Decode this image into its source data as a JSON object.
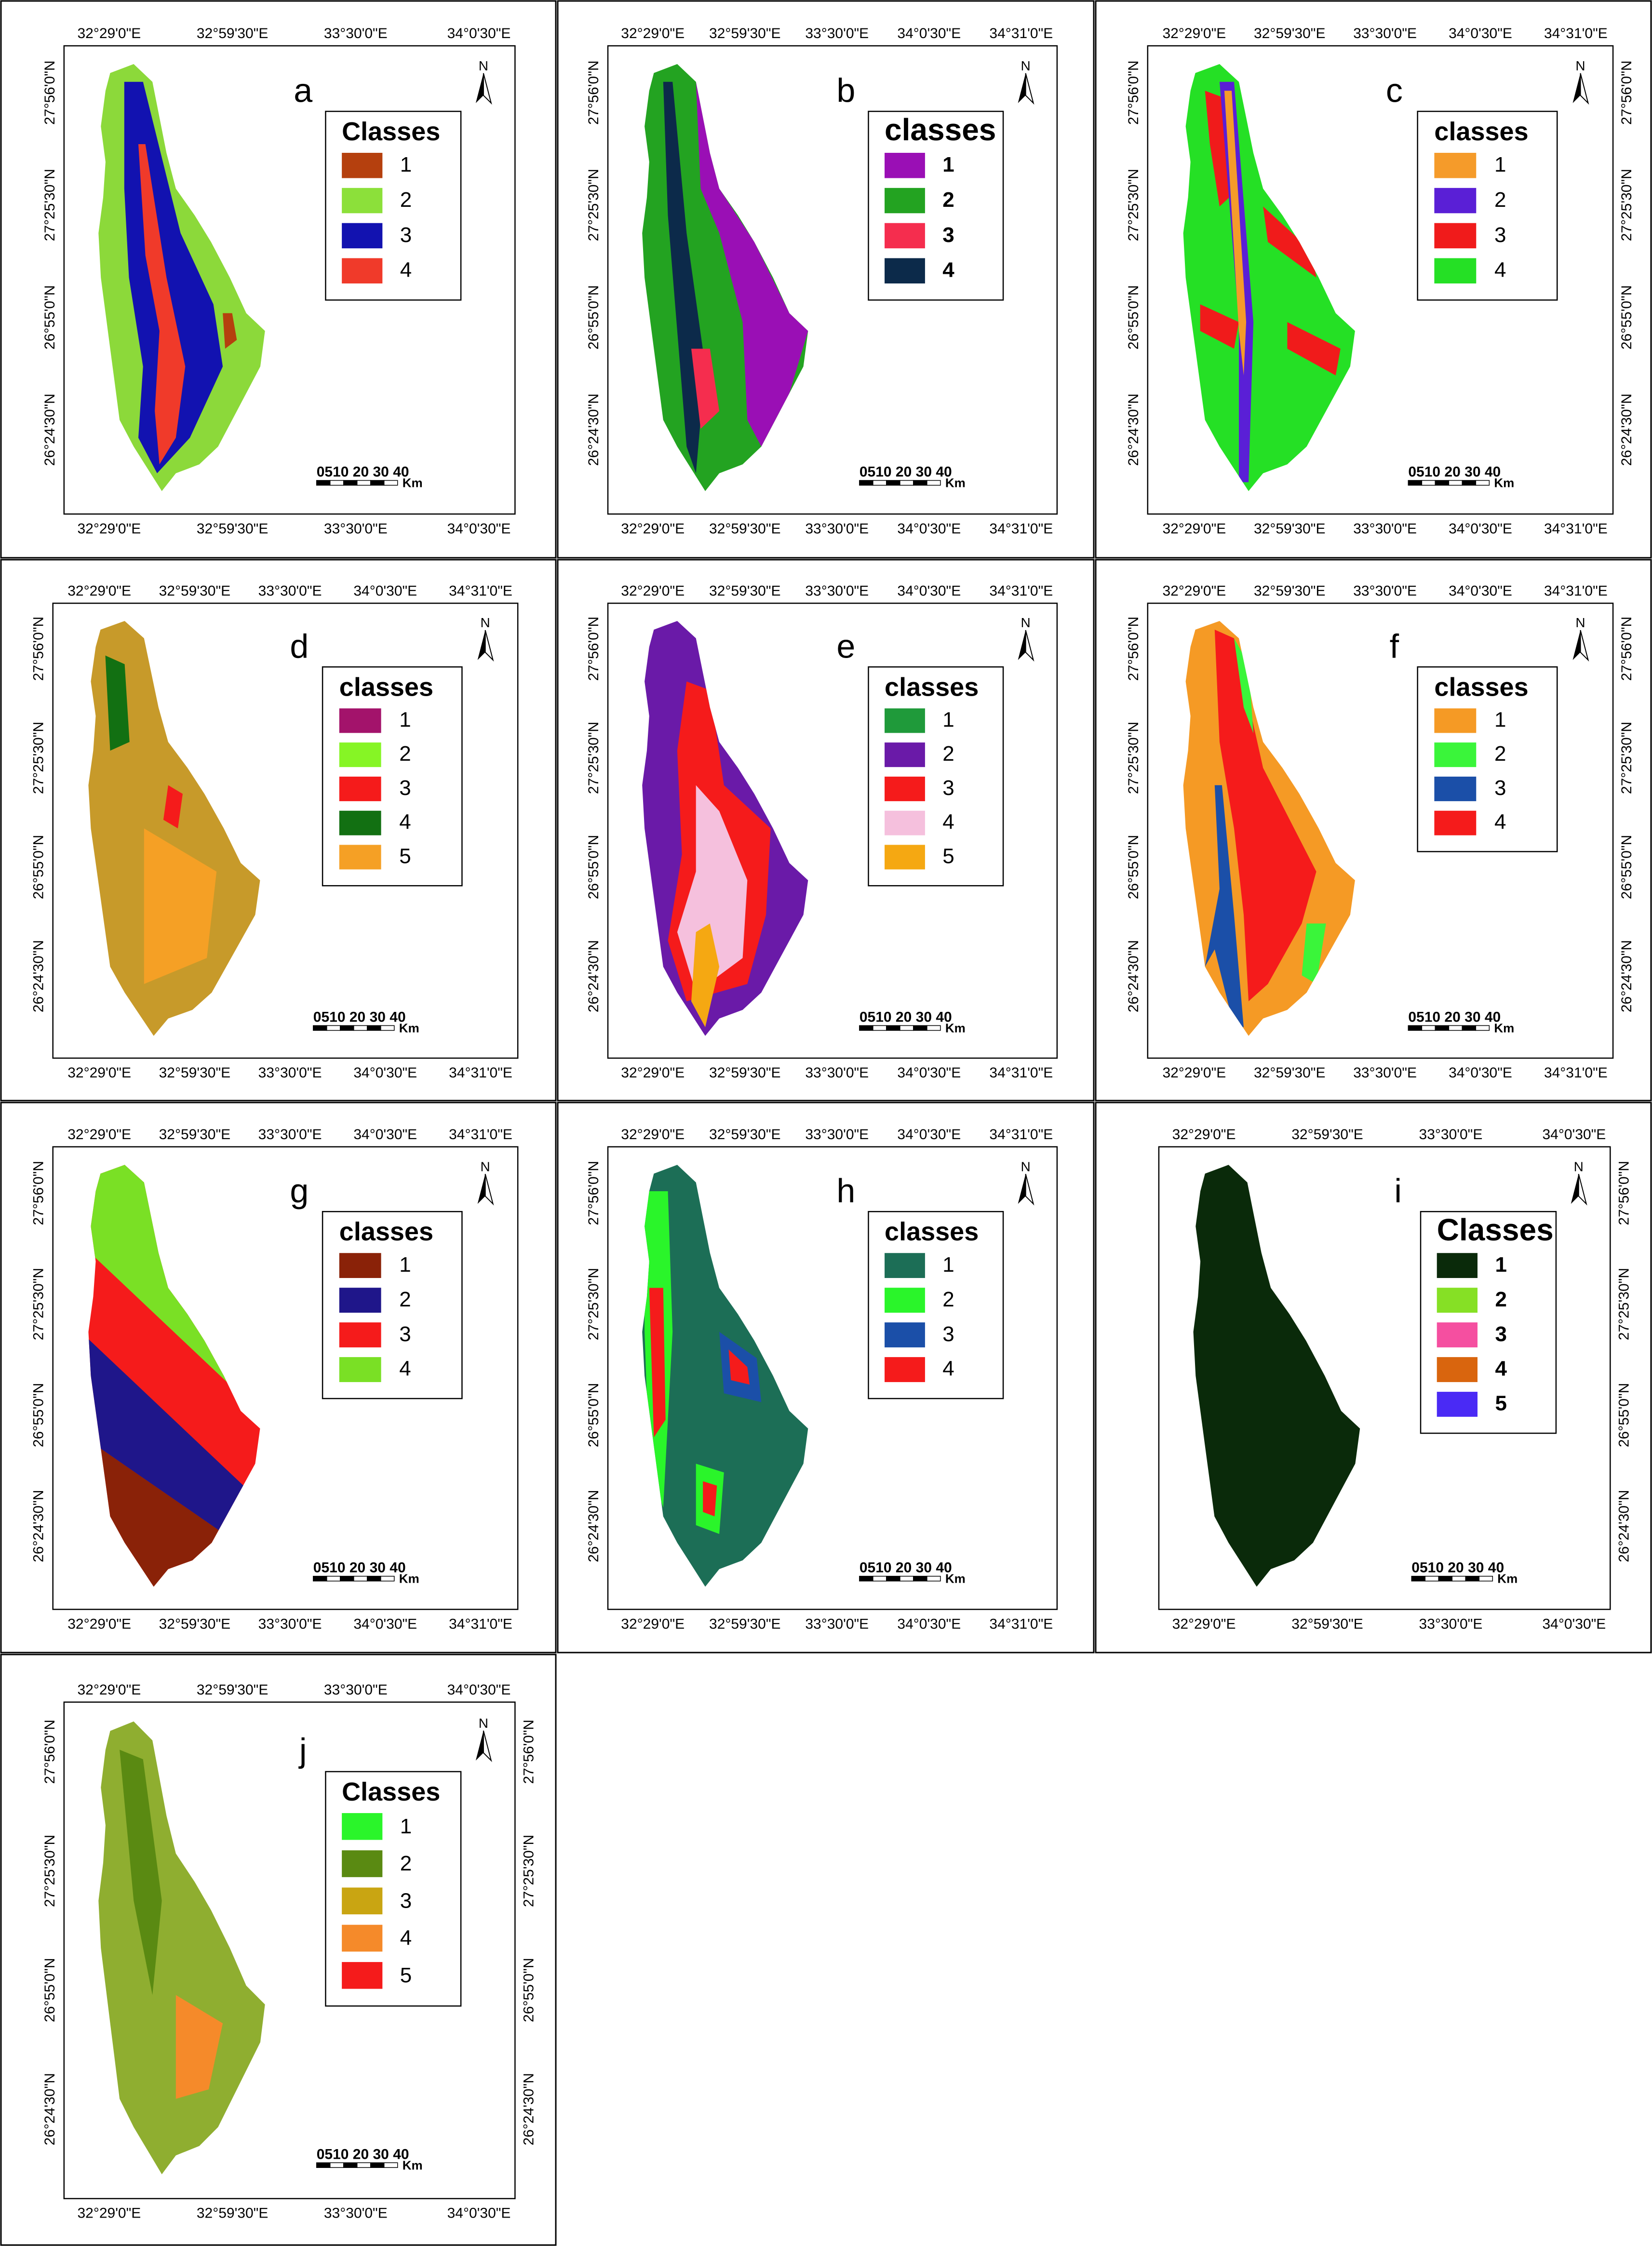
{
  "figure": {
    "scale_bar": {
      "ticks": "0510 20 30 40",
      "unit": "Km"
    },
    "north_label": "N",
    "panels": [
      {
        "id": "a",
        "title": "Classes",
        "legend_bold": false,
        "frame": "b",
        "fill": "#8cd93a",
        "top_coords": [
          "32°29'0\"E",
          "32°59'30\"E",
          "33°30'0\"E",
          "34°0'30\"E"
        ],
        "bottom_coords": [
          "32°29'0\"E",
          "32°59'30\"E",
          "33°30'0\"E",
          "34°0'30\"E"
        ],
        "left_coords": [
          "27°56'0\"N",
          "27°25'30\"N",
          "26°55'0\"N",
          "26°24'30\"N"
        ],
        "right_coords": [],
        "classes": [
          {
            "label": "1",
            "color": "#b5400e"
          },
          {
            "label": "2",
            "color": "#8ce03a"
          },
          {
            "label": "3",
            "color": "#1212b0"
          },
          {
            "label": "4",
            "color": "#f03a2a"
          }
        ]
      },
      {
        "id": "b",
        "title": "classes",
        "legend_bold": true,
        "frame": "a",
        "fill": "#23a321",
        "top_coords": [
          "32°29'0\"E",
          "32°59'30\"E",
          "33°30'0\"E",
          "34°0'30\"E",
          "34°31'0\"E"
        ],
        "bottom_coords": [
          "32°29'0\"E",
          "32°59'30\"E",
          "33°30'0\"E",
          "34°0'30\"E",
          "34°31'0\"E"
        ],
        "left_coords": [
          "27°56'0\"N",
          "27°25'30\"N",
          "26°55'0\"N",
          "26°24'30\"N"
        ],
        "right_coords": [],
        "classes": [
          {
            "label": "1",
            "color": "#9a0fb5"
          },
          {
            "label": "2",
            "color": "#23a321"
          },
          {
            "label": "3",
            "color": "#f52d4e"
          },
          {
            "label": "4",
            "color": "#0c2a4a"
          }
        ]
      },
      {
        "id": "c",
        "title": "classes",
        "legend_bold": false,
        "frame": "a",
        "fill": "#25e025",
        "top_coords": [
          "32°29'0\"E",
          "32°59'30\"E",
          "33°30'0\"E",
          "34°0'30\"E",
          "34°31'0\"E"
        ],
        "bottom_coords": [
          "32°29'0\"E",
          "32°59'30\"E",
          "33°30'0\"E",
          "34°0'30\"E",
          "34°31'0\"E"
        ],
        "left_coords": [
          "27°56'0\"N",
          "27°25'30\"N",
          "26°55'0\"N",
          "26°24'30\"N"
        ],
        "right_coords": [
          "27°56'0\"N",
          "27°25'30\"N",
          "26°55'0\"N",
          "26°24'30\"N"
        ],
        "classes": [
          {
            "label": "1",
            "color": "#f59b2a"
          },
          {
            "label": "2",
            "color": "#5a1fd6"
          },
          {
            "label": "3",
            "color": "#f01b1b"
          },
          {
            "label": "4",
            "color": "#25e025"
          }
        ]
      },
      {
        "id": "d",
        "title": "classes",
        "legend_bold": false,
        "frame": "a",
        "fill": "#c79a2a",
        "top_coords": [
          "32°29'0\"E",
          "32°59'30\"E",
          "33°30'0\"E",
          "34°0'30\"E",
          "34°31'0\"E"
        ],
        "bottom_coords": [
          "32°29'0\"E",
          "32°59'30\"E",
          "33°30'0\"E",
          "34°0'30\"E",
          "34°31'0\"E"
        ],
        "left_coords": [
          "27°56'0\"N",
          "27°25'30\"N",
          "26°55'0\"N",
          "26°24'30\"N"
        ],
        "right_coords": [],
        "classes": [
          {
            "label": "1",
            "color": "#a3136b"
          },
          {
            "label": "2",
            "color": "#86f525"
          },
          {
            "label": "3",
            "color": "#f51b1b"
          },
          {
            "label": "4",
            "color": "#127012"
          },
          {
            "label": "5",
            "color": "#f5a025"
          }
        ]
      },
      {
        "id": "e",
        "title": "classes",
        "legend_bold": false,
        "frame": "a",
        "fill": "#6a1aa8",
        "top_coords": [
          "32°29'0\"E",
          "32°59'30\"E",
          "33°30'0\"E",
          "34°0'30\"E",
          "34°31'0\"E"
        ],
        "bottom_coords": [
          "32°29'0\"E",
          "32°59'30\"E",
          "33°30'0\"E",
          "34°0'30\"E",
          "34°31'0\"E"
        ],
        "left_coords": [
          "27°56'0\"N",
          "27°25'30\"N",
          "26°55'0\"N",
          "26°24'30\"N"
        ],
        "right_coords": [],
        "classes": [
          {
            "label": "1",
            "color": "#1f9a3a"
          },
          {
            "label": "2",
            "color": "#6a1aa8"
          },
          {
            "label": "3",
            "color": "#f51b1b"
          },
          {
            "label": "4",
            "color": "#f5c0dd"
          },
          {
            "label": "5",
            "color": "#f5a812"
          }
        ]
      },
      {
        "id": "f",
        "title": "classes",
        "legend_bold": false,
        "frame": "a",
        "fill": "#f59a25",
        "top_coords": [
          "32°29'0\"E",
          "32°59'30\"E",
          "33°30'0\"E",
          "34°0'30\"E",
          "34°31'0\"E"
        ],
        "bottom_coords": [
          "32°29'0\"E",
          "32°59'30\"E",
          "33°30'0\"E",
          "34°0'30\"E",
          "34°31'0\"E"
        ],
        "left_coords": [
          "27°56'0\"N",
          "27°25'30\"N",
          "26°55'0\"N",
          "26°24'30\"N"
        ],
        "right_coords": [
          "27°56'0\"N",
          "27°25'30\"N",
          "26°55'0\"N",
          "26°24'30\"N"
        ],
        "classes": [
          {
            "label": "1",
            "color": "#f59a25"
          },
          {
            "label": "2",
            "color": "#3af53a"
          },
          {
            "label": "3",
            "color": "#1b4fa8"
          },
          {
            "label": "4",
            "color": "#f51b1b"
          }
        ]
      },
      {
        "id": "g",
        "title": "classes",
        "legend_bold": false,
        "frame": "a",
        "fill": "#f51b1b",
        "top_coords": [
          "32°29'0\"E",
          "32°59'30\"E",
          "33°30'0\"E",
          "34°0'30\"E",
          "34°31'0\"E"
        ],
        "bottom_coords": [
          "32°29'0\"E",
          "32°59'30\"E",
          "33°30'0\"E",
          "34°0'30\"E",
          "34°31'0\"E"
        ],
        "left_coords": [
          "27°56'0\"N",
          "27°25'30\"N",
          "26°55'0\"N",
          "26°24'30\"N"
        ],
        "right_coords": [],
        "classes": [
          {
            "label": "1",
            "color": "#8a2208"
          },
          {
            "label": "2",
            "color": "#1f168a"
          },
          {
            "label": "3",
            "color": "#f51b1b"
          },
          {
            "label": "4",
            "color": "#7ae025"
          }
        ]
      },
      {
        "id": "h",
        "title": "classes",
        "legend_bold": false,
        "frame": "a",
        "fill": "#1c6e56",
        "top_coords": [
          "32°29'0\"E",
          "32°59'30\"E",
          "33°30'0\"E",
          "34°0'30\"E",
          "34°31'0\"E"
        ],
        "bottom_coords": [
          "32°29'0\"E",
          "32°59'30\"E",
          "33°30'0\"E",
          "34°0'30\"E",
          "34°31'0\"E"
        ],
        "left_coords": [
          "27°56'0\"N",
          "27°25'30\"N",
          "26°55'0\"N",
          "26°24'30\"N"
        ],
        "right_coords": [],
        "classes": [
          {
            "label": "1",
            "color": "#1c6e56"
          },
          {
            "label": "2",
            "color": "#2af52a"
          },
          {
            "label": "3",
            "color": "#1b4fa8"
          },
          {
            "label": "4",
            "color": "#f51b1b"
          }
        ]
      },
      {
        "id": "i",
        "title": "Classes",
        "legend_bold": true,
        "frame": "b",
        "fill": "#0a2a0a",
        "top_coords": [
          "32°29'0\"E",
          "32°59'30\"E",
          "33°30'0\"E",
          "34°0'30\"E"
        ],
        "bottom_coords": [
          "32°29'0\"E",
          "32°59'30\"E",
          "33°30'0\"E",
          "34°0'30\"E"
        ],
        "left_coords": [],
        "right_coords": [
          "27°56'0\"N",
          "27°25'30\"N",
          "26°55'0\"N",
          "26°24'30\"N"
        ],
        "classes": [
          {
            "label": "1",
            "color": "#0a2a0a"
          },
          {
            "label": "2",
            "color": "#86e025"
          },
          {
            "label": "3",
            "color": "#f54fa0"
          },
          {
            "label": "4",
            "color": "#d9650e"
          },
          {
            "label": "5",
            "color": "#4a2af5"
          }
        ]
      },
      {
        "id": "j",
        "title": "Classes",
        "legend_bold": false,
        "frame": "b",
        "fill": "#8fae30",
        "top_coords": [
          "32°29'0\"E",
          "32°59'30\"E",
          "33°30'0\"E",
          "34°0'30\"E"
        ],
        "bottom_coords": [
          "32°29'0\"E",
          "32°59'30\"E",
          "33°30'0\"E",
          "34°0'30\"E"
        ],
        "left_coords": [
          "27°56'0\"N",
          "27°25'30\"N",
          "26°55'0\"N",
          "26°24'30\"N"
        ],
        "right_coords": [
          "27°56'0\"N",
          "27°25'30\"N",
          "26°55'0\"N",
          "26°24'30\"N"
        ],
        "classes": [
          {
            "label": "1",
            "color": "#2af52a"
          },
          {
            "label": "2",
            "color": "#5a8a12"
          },
          {
            "label": "3",
            "color": "#c9a512"
          },
          {
            "label": "4",
            "color": "#f58a2a"
          },
          {
            "label": "5",
            "color": "#f51b1b"
          }
        ]
      }
    ]
  }
}
